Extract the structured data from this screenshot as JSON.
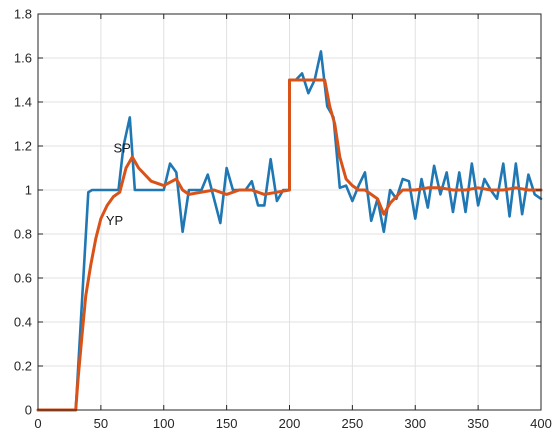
{
  "chart_data": {
    "type": "line",
    "title": "",
    "xlabel": "",
    "ylabel": "",
    "xlim": [
      0,
      400
    ],
    "ylim": [
      0,
      1.8
    ],
    "xticks": [
      0,
      50,
      100,
      150,
      200,
      250,
      300,
      350,
      400
    ],
    "yticks": [
      0,
      0.2,
      0.4,
      0.6,
      0.8,
      1,
      1.2,
      1.4,
      1.6,
      1.8
    ],
    "xtick_labels": [
      "0",
      "50",
      "100",
      "150",
      "200",
      "250",
      "300",
      "350",
      "400"
    ],
    "ytick_labels": [
      "0",
      "0.2",
      "0.4",
      "0.6",
      "0.8",
      "1",
      "1.2",
      "1.4",
      "1.6",
      "1.8"
    ],
    "grid": true,
    "annotations": [
      {
        "text": "SP",
        "x": 60,
        "y": 1.17
      },
      {
        "text": "YP",
        "x": 54,
        "y": 0.84
      }
    ],
    "series": [
      {
        "color": "#1f77b4",
        "x": [
          0,
          30,
          40,
          43,
          47,
          50,
          60,
          64,
          68,
          73,
          77,
          80,
          90,
          100,
          105,
          110,
          115,
          120,
          125,
          130,
          135,
          140,
          145,
          150,
          155,
          160,
          165,
          170,
          175,
          180,
          185,
          190,
          195,
          200,
          200,
          205,
          210,
          215,
          220,
          225,
          230,
          235,
          240,
          245,
          250,
          255,
          260,
          265,
          270,
          275,
          280,
          285,
          290,
          295,
          300,
          305,
          310,
          315,
          320,
          325,
          330,
          335,
          340,
          345,
          350,
          355,
          360,
          365,
          370,
          375,
          380,
          385,
          390,
          395,
          400
        ],
        "y": [
          0,
          0,
          0.99,
          1.0,
          1.0,
          1.0,
          1.0,
          1.0,
          1.2,
          1.33,
          1.0,
          1.0,
          1.0,
          1.0,
          1.12,
          1.08,
          0.81,
          1.0,
          1.0,
          1.0,
          1.07,
          0.96,
          0.85,
          1.1,
          1.0,
          1.0,
          1.0,
          1.04,
          0.93,
          0.93,
          1.14,
          0.95,
          1.0,
          1.0,
          1.5,
          1.5,
          1.53,
          1.44,
          1.5,
          1.63,
          1.38,
          1.33,
          1.01,
          1.02,
          0.95,
          1.02,
          1.08,
          0.86,
          0.96,
          0.81,
          1.0,
          0.96,
          1.05,
          1.04,
          0.87,
          1.05,
          0.92,
          1.11,
          0.98,
          1.08,
          0.9,
          1.08,
          0.9,
          1.12,
          0.93,
          1.05,
          1.0,
          0.96,
          1.12,
          0.88,
          1.12,
          0.89,
          1.07,
          0.98,
          0.96
        ]
      },
      {
        "color": "#d95319",
        "x": [
          0,
          30,
          32,
          35,
          38,
          42,
          46,
          50,
          55,
          60,
          65,
          70,
          75,
          80,
          90,
          100,
          110,
          115,
          120,
          130,
          140,
          150,
          160,
          170,
          180,
          190,
          200,
          200,
          210,
          220,
          228,
          232,
          236,
          240,
          245,
          250,
          255,
          260,
          265,
          270,
          275,
          280,
          290,
          300,
          310,
          320,
          330,
          340,
          350,
          360,
          370,
          380,
          390,
          400
        ],
        "y": [
          0,
          0,
          0.15,
          0.34,
          0.52,
          0.66,
          0.78,
          0.87,
          0.93,
          0.97,
          0.99,
          1.1,
          1.15,
          1.1,
          1.04,
          1.02,
          1.05,
          1.0,
          0.98,
          0.99,
          1.0,
          0.98,
          1.0,
          1.0,
          0.98,
          0.99,
          1.0,
          1.5,
          1.5,
          1.5,
          1.5,
          1.38,
          1.3,
          1.15,
          1.05,
          1.02,
          1.0,
          1.0,
          0.98,
          0.96,
          0.89,
          0.94,
          1.0,
          1.0,
          1.01,
          1.01,
          1.0,
          1.0,
          1.01,
          1.0,
          1.0,
          1.01,
          1.0,
          1.0
        ]
      }
    ]
  }
}
